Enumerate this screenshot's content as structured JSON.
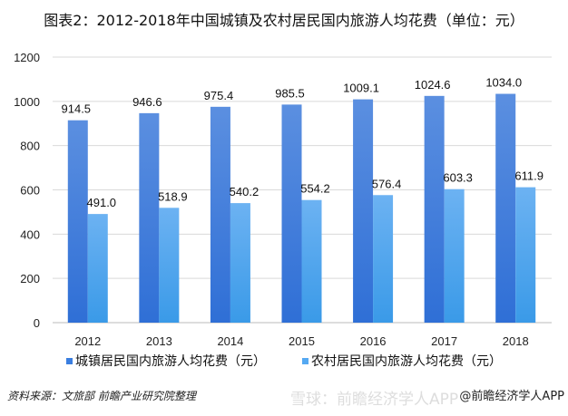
{
  "chart_data": {
    "type": "bar",
    "title": "图表2：2012-2018年中国城镇及农村居民国内旅游人均花费（单位：元）",
    "categories": [
      "2012",
      "2013",
      "2014",
      "2015",
      "2016",
      "2017",
      "2018"
    ],
    "series": [
      {
        "name": "城镇居民国内旅游人均花费（元）",
        "color": "#3a7ee0",
        "values": [
          914.5,
          946.6,
          975.4,
          985.5,
          1009.1,
          1024.6,
          1034.0
        ]
      },
      {
        "name": "农村居民国内旅游人均花费（元）",
        "color": "#55a9f2",
        "values": [
          491.0,
          518.9,
          540.2,
          554.2,
          576.4,
          603.3,
          611.9
        ]
      }
    ],
    "ylim": [
      0,
      1200
    ],
    "yticks": [
      0,
      200,
      400,
      600,
      800,
      1000,
      1200
    ],
    "grid": true,
    "legend": "bottom",
    "xlabel": "",
    "ylabel": ""
  },
  "footer": {
    "source": "资料来源：文旅部 前瞻产业研究院整理",
    "watermark": "雪球：前瞻经济学人APP",
    "credit": "@前瞻经济学人APP"
  }
}
